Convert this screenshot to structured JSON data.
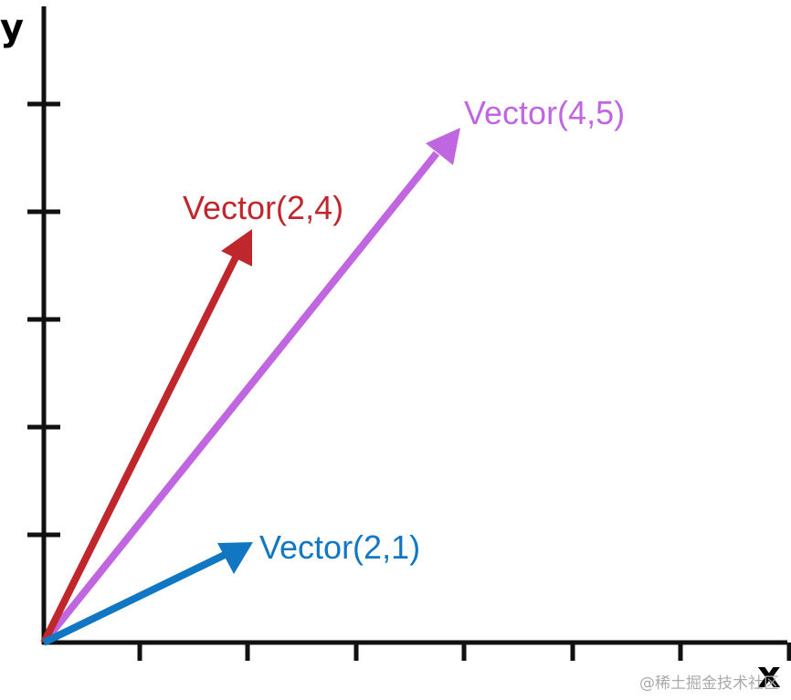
{
  "axes": {
    "x_label": "x",
    "y_label": "y",
    "x_ticks": 7,
    "y_ticks": 6,
    "color": "#111111"
  },
  "vectors": [
    {
      "id": "vector-2-1",
      "label": "Vector(2,1)",
      "x": 2,
      "y": 1,
      "color": "#1177c2"
    },
    {
      "id": "vector-2-4",
      "label": "Vector(2,4)",
      "x": 2,
      "y": 4,
      "color": "#c0272d"
    },
    {
      "id": "vector-4-5",
      "label": "Vector(4,5)",
      "x": 4,
      "y": 5,
      "color": "#c066e0"
    }
  ],
  "watermark": "@稀土掘金技术社区"
}
